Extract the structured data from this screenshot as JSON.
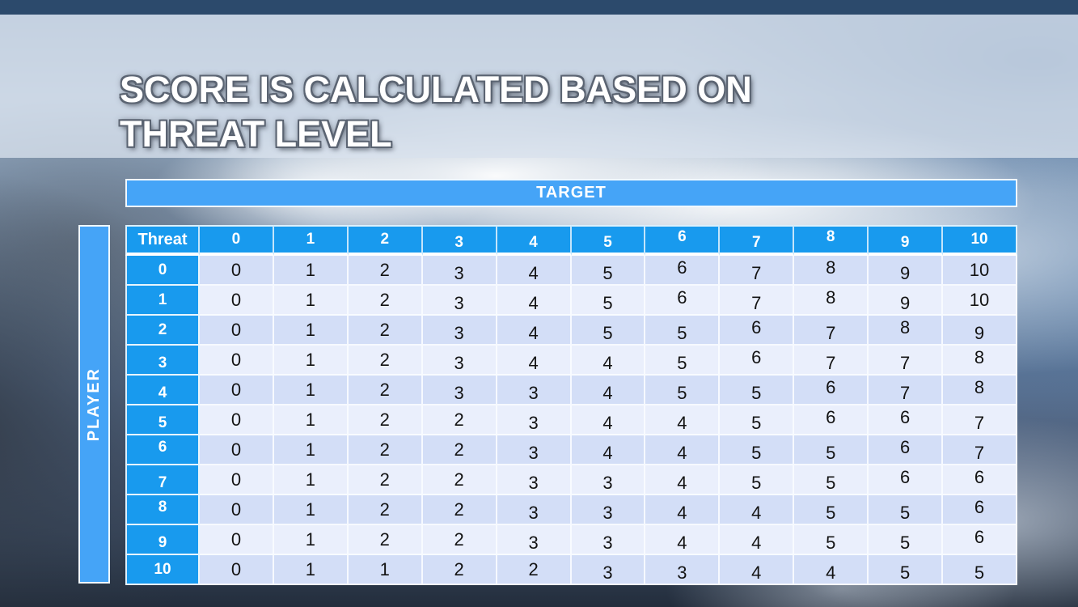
{
  "slide": {
    "title_lines": [
      "SCORE IS CALCULATED BASED ON",
      "THREAT LEVEL"
    ]
  },
  "matrix": {
    "target_label": "TARGET",
    "player_label": "PLAYER",
    "corner_label": "Threat",
    "column_headers": [
      "0",
      "1",
      "2",
      "3",
      "4",
      "5",
      "6",
      "7",
      "8",
      "9",
      "10"
    ],
    "row_headers": [
      "0",
      "1",
      "2",
      "3",
      "4",
      "5",
      "6",
      "7",
      "8",
      "9",
      "10"
    ],
    "rows": [
      [
        0,
        1,
        2,
        3,
        4,
        5,
        6,
        7,
        8,
        9,
        10
      ],
      [
        0,
        1,
        2,
        3,
        4,
        5,
        6,
        7,
        8,
        9,
        10
      ],
      [
        0,
        1,
        2,
        3,
        4,
        5,
        5,
        6,
        7,
        8,
        9
      ],
      [
        0,
        1,
        2,
        3,
        4,
        4,
        5,
        6,
        7,
        7,
        8
      ],
      [
        0,
        1,
        2,
        3,
        3,
        4,
        5,
        5,
        6,
        7,
        8
      ],
      [
        0,
        1,
        2,
        2,
        3,
        4,
        4,
        5,
        6,
        6,
        7
      ],
      [
        0,
        1,
        2,
        2,
        3,
        4,
        4,
        5,
        5,
        6,
        7
      ],
      [
        0,
        1,
        2,
        2,
        3,
        3,
        4,
        5,
        5,
        6,
        6
      ],
      [
        0,
        1,
        2,
        2,
        3,
        3,
        4,
        4,
        5,
        5,
        6
      ],
      [
        0,
        1,
        2,
        2,
        3,
        3,
        4,
        4,
        5,
        5,
        6
      ],
      [
        0,
        1,
        1,
        2,
        2,
        3,
        3,
        4,
        4,
        5,
        5
      ]
    ]
  },
  "colors": {
    "header_blue": "#189AEE",
    "band_blue": "#45A4F7",
    "row_dark": "#D3DEF7",
    "row_light": "#EAEFFC",
    "top_strip": "#2C4A6C",
    "cell_text": "#131313"
  }
}
